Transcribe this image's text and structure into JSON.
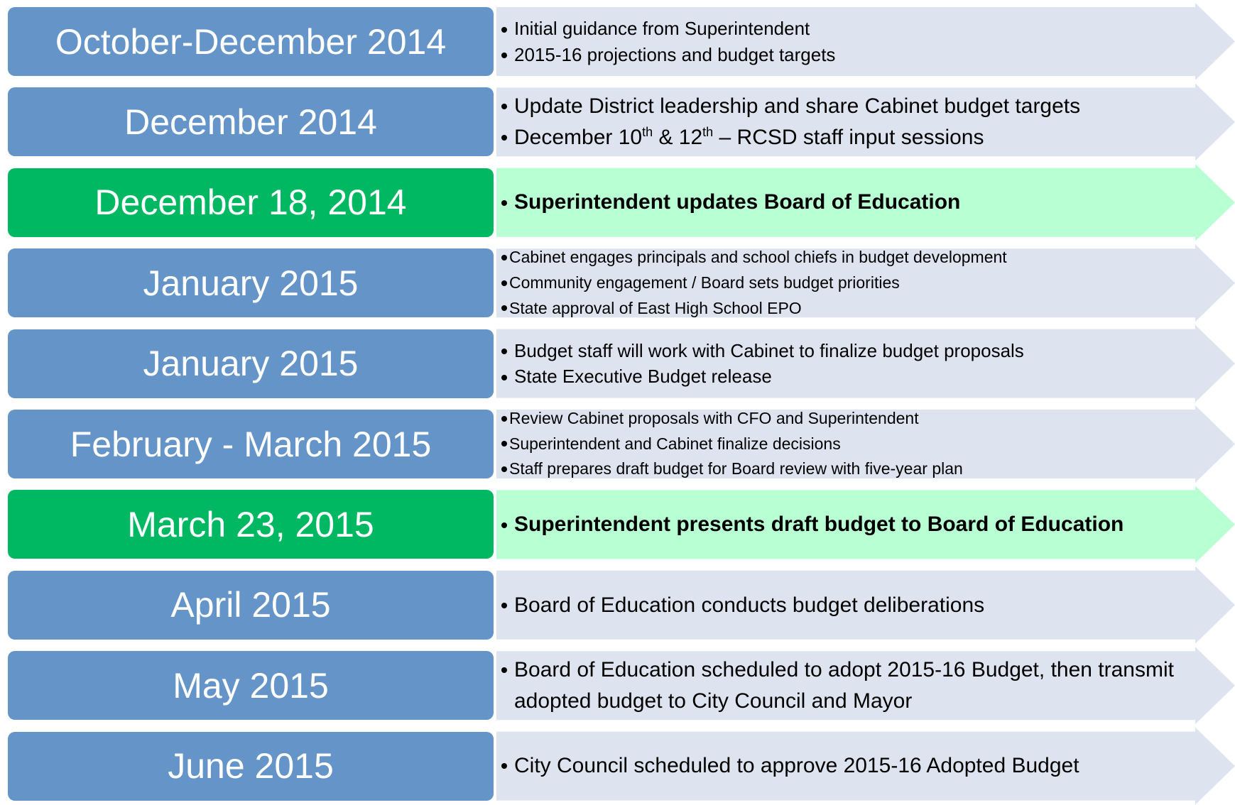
{
  "timeline": {
    "rows": [
      {
        "label": "October-December 2014",
        "highlight": false,
        "bullets": [
          "Initial guidance from Superintendent",
          "2015-16 projections and budget targets"
        ]
      },
      {
        "label": "December 2014",
        "highlight": false,
        "bullets": [
          "Update District leadership and share Cabinet budget targets",
          {
            "parts": [
              {
                "text": "December 10"
              },
              {
                "sup": "th"
              },
              {
                "text": " & 12"
              },
              {
                "sup": "th"
              },
              {
                "text": " – RCSD staff input sessions"
              }
            ]
          }
        ]
      },
      {
        "label": "December 18, 2014",
        "highlight": true,
        "bullets": [
          "Superintendent updates Board of Education"
        ]
      },
      {
        "label": "January 2015",
        "highlight": false,
        "bullets": [
          "Cabinet engages principals and school chiefs in budget development",
          "Community engagement / Board sets budget priorities",
          "State approval of East High School EPO"
        ]
      },
      {
        "label": "January 2015",
        "highlight": false,
        "bullets": [
          "Budget staff will work with  Cabinet to finalize budget proposals",
          "State Executive Budget release"
        ]
      },
      {
        "label": "February - March 2015",
        "highlight": false,
        "bullets": [
          "Review Cabinet proposals with CFO and Superintendent",
          "Superintendent and Cabinet finalize decisions",
          "Staff prepares draft budget for Board review with five-year plan"
        ]
      },
      {
        "label": "March 23, 2015",
        "highlight": true,
        "bullets": [
          "Superintendent presents draft budget to Board of Education"
        ]
      },
      {
        "label": "April 2015",
        "highlight": false,
        "bullets": [
          "Board of Education conducts budget deliberations"
        ]
      },
      {
        "label": "May 2015",
        "highlight": false,
        "bullets": [
          "Board of Education scheduled to adopt 2015-16 Budget, then transmit adopted budget to City Council and Mayor"
        ]
      },
      {
        "label": "June 2015",
        "highlight": false,
        "bullets": [
          "City Council scheduled to approve 2015-16 Adopted Budget"
        ]
      }
    ]
  }
}
